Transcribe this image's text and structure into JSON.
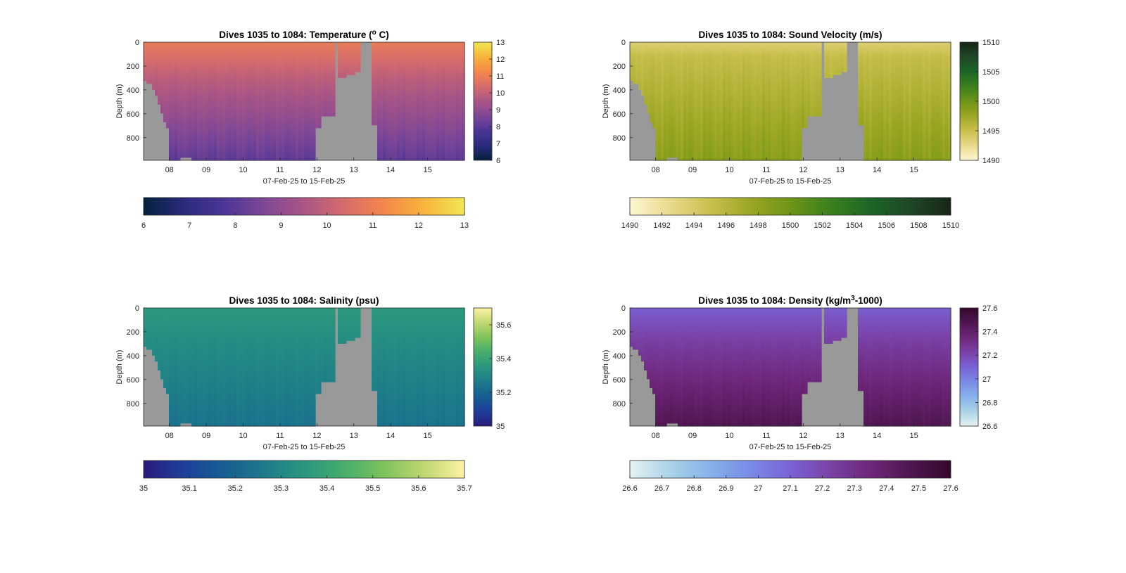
{
  "figure": {
    "chart_data": [
      {
        "type": "heatmap",
        "title": "Dives 1035 to 1084: Temperature (",
        "title_sup": "o",
        "title_tail": " C)",
        "xlabel": "07-Feb-25 to 15-Feb-25",
        "ylabel": "Depth (m)",
        "x_ticks": [
          "08",
          "09",
          "10",
          "11",
          "12",
          "13",
          "14",
          "15"
        ],
        "y_ticks": [
          "0",
          "200",
          "400",
          "600",
          "800"
        ],
        "ylim": [
          0,
          990
        ],
        "xlim_days": [
          7.3,
          16.0
        ],
        "colormap": "thermal",
        "clim": [
          6,
          13
        ],
        "cb_right_ticks": [
          "6",
          "7",
          "8",
          "9",
          "10",
          "11",
          "12",
          "13"
        ],
        "cb_bottom_ticks": [
          "6",
          "7",
          "8",
          "9",
          "10",
          "11",
          "12",
          "13"
        ],
        "surface_value": 10.9,
        "deep_value": 8.1,
        "profile_variability": 0.35,
        "upper_layer_m": 280,
        "gap_color": "#999999"
      },
      {
        "type": "heatmap",
        "title": "Dives 1035 to 1084: Sound Velocity (m/s)",
        "title_sup": "",
        "title_tail": "",
        "xlabel": "07-Feb-25 to 15-Feb-25",
        "ylabel": "Depth (m)",
        "x_ticks": [
          "08",
          "09",
          "10",
          "11",
          "12",
          "13",
          "14",
          "15"
        ],
        "y_ticks": [
          "0",
          "200",
          "400",
          "600",
          "800"
        ],
        "ylim": [
          0,
          990
        ],
        "xlim_days": [
          7.3,
          16.0
        ],
        "colormap": "speed",
        "clim": [
          1490,
          1510
        ],
        "cb_right_ticks": [
          "1490",
          "1495",
          "1500",
          "1505",
          "1510"
        ],
        "cb_bottom_ticks": [
          "1490",
          "1492",
          "1494",
          "1496",
          "1498",
          "1500",
          "1502",
          "1504",
          "1506",
          "1508",
          "1510"
        ],
        "surface_value": 1493.5,
        "deep_value": 1498.5,
        "profile_variability": 1.2,
        "upper_layer_m": 120,
        "gap_color": "#999999"
      },
      {
        "type": "heatmap",
        "title": "Dives 1035 to 1084: Salinity (psu)",
        "title_sup": "",
        "title_tail": "",
        "xlabel": "07-Feb-25 to 15-Feb-25",
        "ylabel": "Depth (m)",
        "x_ticks": [
          "08",
          "09",
          "10",
          "11",
          "12",
          "13",
          "14",
          "15"
        ],
        "y_ticks": [
          "0",
          "200",
          "400",
          "600",
          "800"
        ],
        "ylim": [
          0,
          990
        ],
        "xlim_days": [
          7.3,
          16.0
        ],
        "colormap": "haline",
        "clim": [
          35,
          35.7
        ],
        "cb_right_ticks": [
          "35",
          "35.2",
          "35.4",
          "35.6"
        ],
        "cb_bottom_ticks": [
          "35",
          "35.1",
          "35.2",
          "35.3",
          "35.4",
          "35.5",
          "35.6",
          "35.7"
        ],
        "surface_value": 35.36,
        "deep_value": 35.24,
        "profile_variability": 0.025,
        "upper_layer_m": 300,
        "gap_color": "#999999"
      },
      {
        "type": "heatmap",
        "title": "Dives 1035 to 1084: Density (kg/m",
        "title_sup": "3",
        "title_tail": "-1000)",
        "xlabel": "07-Feb-25 to 15-Feb-25",
        "ylabel": "Depth (m)",
        "x_ticks": [
          "08",
          "09",
          "10",
          "11",
          "12",
          "13",
          "14",
          "15"
        ],
        "y_ticks": [
          "0",
          "200",
          "400",
          "600",
          "800"
        ],
        "ylim": [
          0,
          990
        ],
        "xlim_days": [
          7.3,
          16.0
        ],
        "colormap": "dense",
        "clim": [
          26.6,
          27.6
        ],
        "cb_right_ticks": [
          "26.6",
          "26.8",
          "27",
          "27.2",
          "27.4",
          "27.6"
        ],
        "cb_bottom_ticks": [
          "26.6",
          "26.7",
          "26.8",
          "26.9",
          "27",
          "27.1",
          "27.2",
          "27.3",
          "27.4",
          "27.5",
          "27.6"
        ],
        "surface_value": 27.12,
        "deep_value": 27.47,
        "profile_variability": 0.03,
        "upper_layer_m": 300,
        "gap_color": "#999999"
      }
    ],
    "dive_profiles": {
      "description_keys": [
        "start_day",
        "end_day",
        "max_depth_m"
      ],
      "segments": [
        [
          7.3,
          7.4,
          310
        ],
        [
          7.4,
          7.5,
          350
        ],
        [
          7.5,
          7.6,
          400
        ],
        [
          7.6,
          7.68,
          450
        ],
        [
          7.68,
          7.76,
          520
        ],
        [
          7.76,
          7.85,
          600
        ],
        [
          7.85,
          7.93,
          680
        ],
        [
          7.93,
          8.02,
          720
        ],
        [
          8.02,
          8.33,
          990
        ],
        [
          8.33,
          8.5,
          960
        ],
        [
          8.5,
          8.62,
          975
        ],
        [
          8.62,
          8.8,
          990
        ],
        [
          8.8,
          11.98,
          985
        ],
        [
          11.98,
          12.12,
          720
        ],
        [
          12.12,
          12.48,
          620
        ],
        [
          12.48,
          12.6,
          0
        ],
        [
          12.6,
          12.83,
          290
        ],
        [
          12.83,
          13.05,
          260
        ],
        [
          13.05,
          13.18,
          250
        ],
        [
          13.18,
          13.45,
          0
        ],
        [
          13.45,
          13.65,
          700
        ],
        [
          13.65,
          16.0,
          985
        ]
      ]
    }
  }
}
